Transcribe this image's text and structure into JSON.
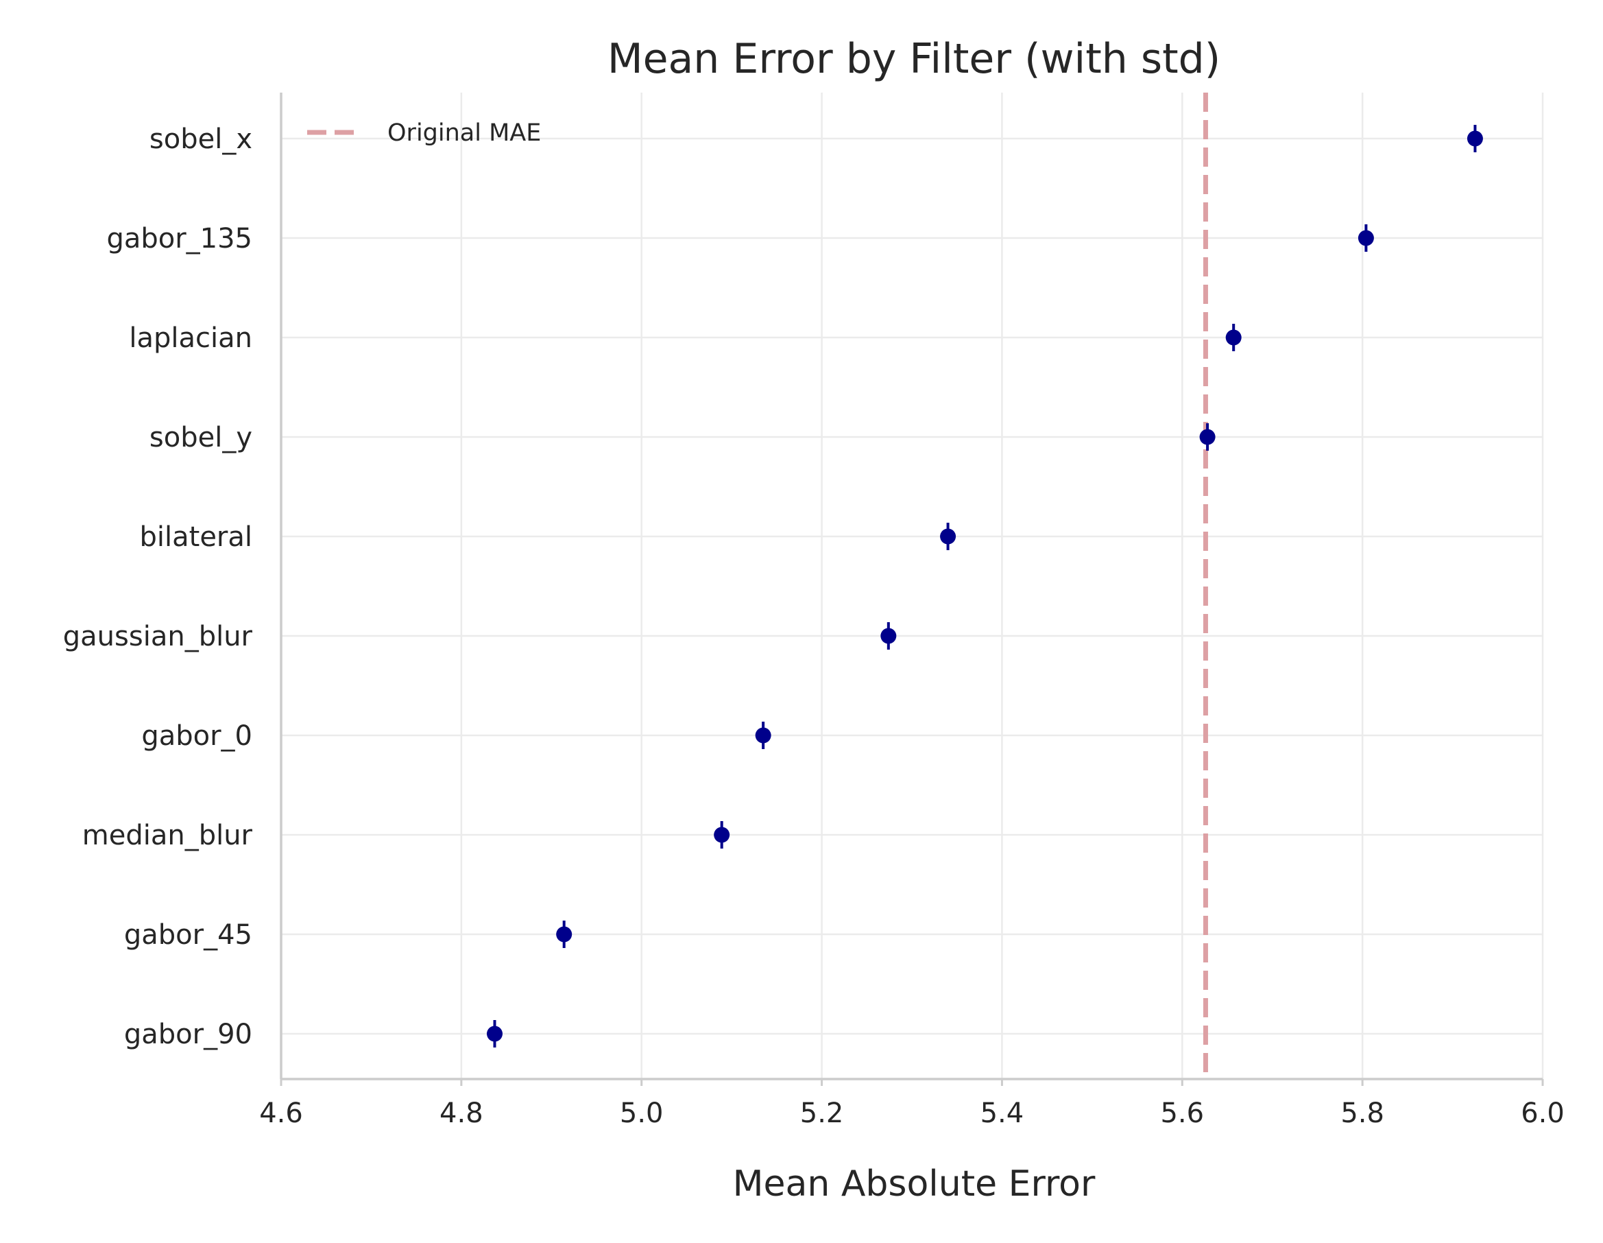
{
  "chart_data": {
    "type": "scatter",
    "title": "Mean Error by Filter (with std)",
    "xlabel": "Mean Absolute Error",
    "ylabel": "",
    "xlim": [
      4.6,
      6.0
    ],
    "xticks": [
      "4.6",
      "4.8",
      "5.0",
      "5.2",
      "5.4",
      "5.6",
      "5.8",
      "6.0"
    ],
    "categories": [
      "sobel_x",
      "gabor_135",
      "laplacian",
      "sobel_y",
      "bilateral",
      "gaussian_blur",
      "gabor_0",
      "median_blur",
      "gabor_45",
      "gabor_90"
    ],
    "series": [
      {
        "values": [
          5.925,
          5.804,
          5.657,
          5.628,
          5.34,
          5.274,
          5.135,
          5.089,
          4.914,
          4.837
        ],
        "std": [
          0.016,
          0.016,
          0.016,
          0.016,
          0.016,
          0.016,
          0.016,
          0.016,
          0.016,
          0.016
        ],
        "color": "#00008b"
      }
    ],
    "reference_line": {
      "name": "Original MAE",
      "value": 5.626,
      "color": "#dda0a4",
      "style": "dashed"
    },
    "grid": true,
    "legend_position": "upper-left"
  }
}
